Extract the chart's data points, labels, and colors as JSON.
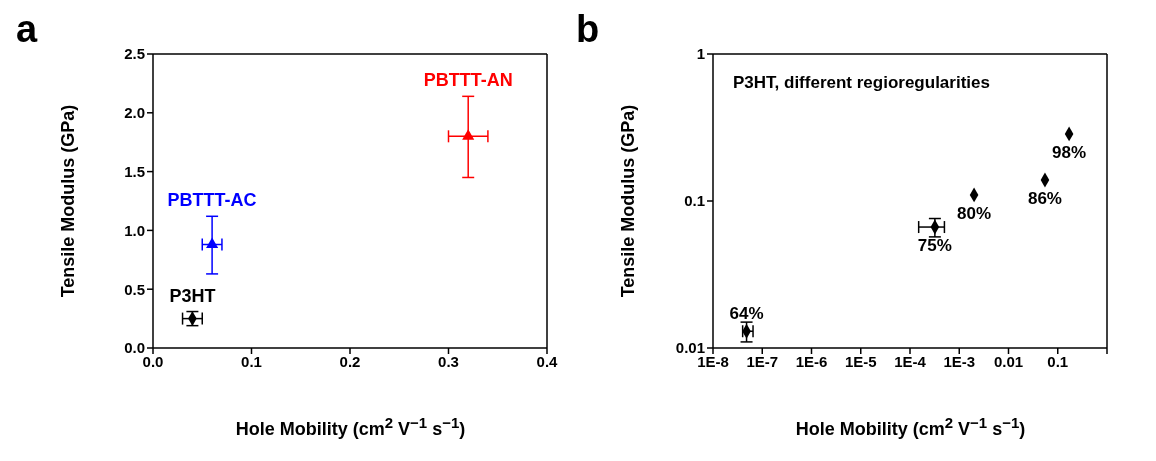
{
  "chart_data": [
    {
      "type": "scatter",
      "title": "a",
      "xlabel": "Hole Mobility (cm$^{2}$ V$^{−1}$ s$^{−1}$)",
      "ylabel": "Tensile Modulus (GPa)",
      "xlim": [
        0,
        0.4
      ],
      "xticks": [
        {
          "value": 0,
          "label": "0.0"
        },
        0.1,
        0.2,
        0.3,
        0.4
      ],
      "ylim": [
        0,
        2.5
      ],
      "yticks": [
        {
          "value": 0,
          "label": "0.0"
        },
        0.5,
        {
          "value": 1,
          "label": "1.0"
        },
        1.5,
        {
          "value": 2,
          "label": "2.0"
        },
        2.5
      ],
      "series": [
        {
          "name": "P3HT",
          "color": "#000000",
          "marker": "diamond",
          "x": [
            0.04
          ],
          "values": [
            0.25
          ],
          "errors": [
            [
              0.19,
              0.31
            ]
          ],
          "xerrors": [
            [
              0.03,
              0.05
            ]
          ]
        },
        {
          "name": "PBTTT-AC",
          "color": "#0000ff",
          "marker": "triangle",
          "x": [
            0.06
          ],
          "values": [
            0.88
          ],
          "errors": [
            [
              0.63,
              1.12
            ]
          ],
          "xerrors": [
            [
              0.05,
              0.07
            ]
          ]
        },
        {
          "name": "PBTTT-AN",
          "color": "#ff0000",
          "marker": "triangle",
          "x": [
            0.32
          ],
          "values": [
            1.8
          ],
          "errors": [
            [
              1.45,
              2.14
            ]
          ],
          "xerrors": [
            [
              0.3,
              0.34
            ]
          ]
        }
      ]
    },
    {
      "type": "scatter",
      "title": "b",
      "xlabel": "Hole Mobility (cm$^{2}$ V$^{−1}$ s$^{−1}$)",
      "ylabel": "Tensile Modulus (GPa)",
      "log": "xy",
      "xlim": [
        1e-08,
        1
      ],
      "xticks": [
        {
          "value": 1e-08,
          "label": "1E-8"
        },
        {
          "value": 1e-07,
          "label": "1E-7"
        },
        {
          "value": 1e-06,
          "label": "1E-6"
        },
        {
          "value": 1e-05,
          "label": "1E-5"
        },
        {
          "value": 0.0001,
          "label": "1E-4"
        },
        {
          "value": 0.001,
          "label": "1E-3"
        },
        0.01,
        0.1,
        {
          "value": 1,
          "label": null
        }
      ],
      "ylim": [
        0.01,
        1
      ],
      "yticks": [
        0.01,
        0.1,
        1
      ],
      "annotations": [
        "P3HT, different regioregularities",
        {
          "text": "64%",
          "x": 4.8e-08,
          "y": 0.013
        },
        {
          "text": "75%",
          "x": 0.00032,
          "y": 0.0665
        },
        {
          "text": "80%",
          "x": 0.002,
          "y": 0.11
        },
        {
          "text": "86%",
          "x": 0.055,
          "y": 0.139
        },
        {
          "text": "98%",
          "x": 0.17,
          "y": 0.286
        }
      ],
      "series": [
        {
          "color": "#000000",
          "marker": "diamond",
          "x": [
            4.8e-08,
            0.00032,
            0.002,
            0.055,
            0.17
          ],
          "values": [
            0.013,
            0.0665,
            0.11,
            0.139,
            0.286
          ],
          "errors": [
            [
              0.011,
              0.015
            ],
            [
              0.057,
              0.076
            ],
            null,
            null,
            null
          ],
          "xerrors": [
            [
              4e-08,
              6.5e-08
            ],
            [
              0.00015,
              0.0005
            ],
            null,
            null,
            null
          ]
        }
      ]
    }
  ]
}
